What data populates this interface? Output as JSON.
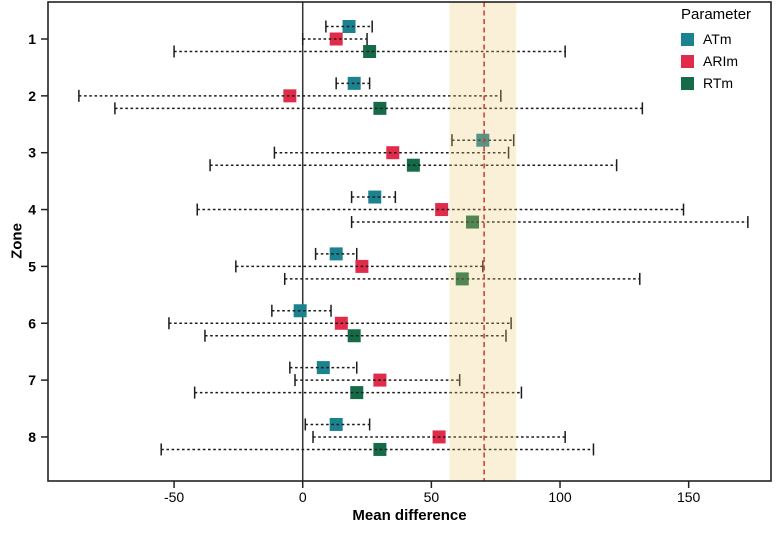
{
  "figure": {
    "xlabel": "Mean difference",
    "ylabel": "Zone",
    "legend": {
      "title": "Parameter",
      "items": [
        {
          "label": "ATm",
          "color": "#1b8290"
        },
        {
          "label": "ARIm",
          "color": "#e12b4a"
        },
        {
          "label": "RTm",
          "color": "#156b48"
        }
      ]
    }
  },
  "chart_data": {
    "type": "scatter",
    "subtype": "forest-plot",
    "title": "",
    "xlabel": "Mean difference",
    "ylabel": "Zone",
    "xlim": [
      -99,
      182
    ],
    "xticks": [
      "-50",
      "0",
      "50",
      "100",
      "150"
    ],
    "xtick_values": [
      -50,
      0,
      50,
      100,
      150
    ],
    "zones": [
      "1",
      "2",
      "3",
      "4",
      "5",
      "6",
      "7",
      "8"
    ],
    "grid": false,
    "legend_position": "top-right",
    "zero_line": {
      "x": 0,
      "color": "#333333"
    },
    "reference_line": {
      "x": 70.5,
      "color": "#d8403c",
      "style": "dashed"
    },
    "band": {
      "from": 57,
      "to": 83,
      "color": "#edc970",
      "opacity": 0.28
    },
    "series": [
      {
        "name": "ATm",
        "color": "#1b8290",
        "points": [
          {
            "zone": 1,
            "mean": 18,
            "lo": 9,
            "hi": 27
          },
          {
            "zone": 2,
            "mean": 20,
            "lo": 13,
            "hi": 26
          },
          {
            "zone": 3,
            "mean": 70,
            "lo": 58,
            "hi": 82
          },
          {
            "zone": 4,
            "mean": 28,
            "lo": 19,
            "hi": 36
          },
          {
            "zone": 5,
            "mean": 13,
            "lo": 5,
            "hi": 21
          },
          {
            "zone": 6,
            "mean": -1,
            "lo": -12,
            "hi": 11
          },
          {
            "zone": 7,
            "mean": 8,
            "lo": -5,
            "hi": 21
          },
          {
            "zone": 8,
            "mean": 13,
            "lo": 1,
            "hi": 26
          }
        ]
      },
      {
        "name": "ARIm",
        "color": "#e12b4a",
        "points": [
          {
            "zone": 1,
            "mean": 13,
            "lo": 0,
            "hi": 25
          },
          {
            "zone": 2,
            "mean": -5,
            "lo": -87,
            "hi": 77
          },
          {
            "zone": 3,
            "mean": 35,
            "lo": -11,
            "hi": 80
          },
          {
            "zone": 4,
            "mean": 54,
            "lo": -41,
            "hi": 148
          },
          {
            "zone": 5,
            "mean": 23,
            "lo": -26,
            "hi": 70
          },
          {
            "zone": 6,
            "mean": 15,
            "lo": -52,
            "hi": 81
          },
          {
            "zone": 7,
            "mean": 30,
            "lo": -3,
            "hi": 61
          },
          {
            "zone": 8,
            "mean": 53,
            "lo": 4,
            "hi": 102
          }
        ]
      },
      {
        "name": "RTm",
        "color": "#156b48",
        "points": [
          {
            "zone": 1,
            "mean": 26,
            "lo": -50,
            "hi": 102
          },
          {
            "zone": 2,
            "mean": 30,
            "lo": -73,
            "hi": 132
          },
          {
            "zone": 3,
            "mean": 43,
            "lo": -36,
            "hi": 122
          },
          {
            "zone": 4,
            "mean": 66,
            "lo": 19,
            "hi": 173
          },
          {
            "zone": 5,
            "mean": 62,
            "lo": -7,
            "hi": 131
          },
          {
            "zone": 6,
            "mean": 20,
            "lo": -38,
            "hi": 79
          },
          {
            "zone": 7,
            "mean": 21,
            "lo": -42,
            "hi": 85
          },
          {
            "zone": 8,
            "mean": 30,
            "lo": -55,
            "hi": 113
          }
        ]
      }
    ]
  }
}
